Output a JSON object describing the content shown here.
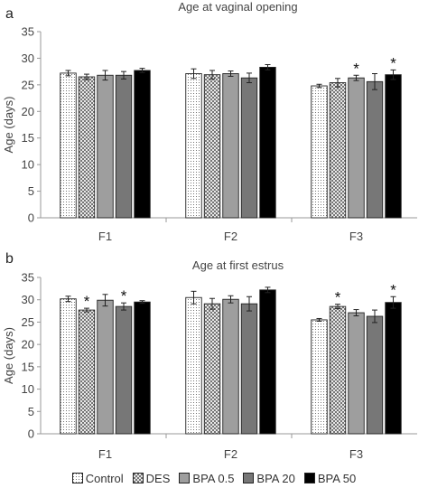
{
  "figure": {
    "series_styles": [
      {
        "name": "Control",
        "fill": "dots",
        "color": "#ffffff"
      },
      {
        "name": "DES",
        "fill": "cross",
        "color": "#ffffff"
      },
      {
        "name": "BPA 0.5",
        "fill": "solid",
        "color": "#9e9e9e"
      },
      {
        "name": "BPA 20",
        "fill": "solid",
        "color": "#777777"
      },
      {
        "name": "BPA 50",
        "fill": "solid",
        "color": "#000000"
      }
    ]
  },
  "chart_data": [
    {
      "type": "bar",
      "panel_label": "a",
      "title": "Age at vaginal opening",
      "ylabel": "Age (days)",
      "xlabel": "",
      "ylim": [
        0,
        35
      ],
      "yticks": [
        0,
        5,
        10,
        15,
        20,
        25,
        30,
        35
      ],
      "categories": [
        "F1",
        "F2",
        "F3"
      ],
      "legend": "bottom",
      "grid": false,
      "series": [
        {
          "name": "Control",
          "values": [
            27.2,
            27.1,
            24.8
          ],
          "errors": [
            0.5,
            0.9,
            0.3
          ],
          "significant": [
            false,
            false,
            false
          ]
        },
        {
          "name": "DES",
          "values": [
            26.5,
            26.9,
            25.4
          ],
          "errors": [
            0.5,
            0.8,
            0.8
          ],
          "significant": [
            false,
            false,
            false
          ]
        },
        {
          "name": "BPA 0.5",
          "values": [
            26.8,
            27.1,
            26.3
          ],
          "errors": [
            0.9,
            0.5,
            0.5
          ],
          "significant": [
            false,
            false,
            true
          ]
        },
        {
          "name": "BPA 20",
          "values": [
            26.8,
            26.3,
            25.6
          ],
          "errors": [
            0.7,
            0.9,
            1.5
          ],
          "significant": [
            false,
            false,
            false
          ]
        },
        {
          "name": "BPA 50",
          "values": [
            27.7,
            28.3,
            26.9
          ],
          "errors": [
            0.4,
            0.5,
            0.9
          ],
          "significant": [
            false,
            false,
            true
          ]
        }
      ],
      "significance_marker": "*"
    },
    {
      "type": "bar",
      "panel_label": "b",
      "title": "Age at first estrus",
      "ylabel": "Age (days)",
      "xlabel": "",
      "ylim": [
        0,
        35
      ],
      "yticks": [
        0,
        5,
        10,
        15,
        20,
        25,
        30,
        35
      ],
      "categories": [
        "F1",
        "F2",
        "F3"
      ],
      "legend": "bottom",
      "grid": false,
      "series": [
        {
          "name": "Control",
          "values": [
            30.2,
            30.5,
            25.5
          ],
          "errors": [
            0.6,
            1.4,
            0.3
          ],
          "significant": [
            false,
            false,
            false
          ]
        },
        {
          "name": "DES",
          "values": [
            27.7,
            29.1,
            28.5
          ],
          "errors": [
            0.4,
            1.2,
            0.5
          ],
          "significant": [
            true,
            false,
            true
          ]
        },
        {
          "name": "BPA 0.5",
          "values": [
            29.9,
            30.1,
            27.1
          ],
          "errors": [
            1.3,
            0.8,
            0.7
          ],
          "significant": [
            false,
            false,
            false
          ]
        },
        {
          "name": "BPA 20",
          "values": [
            28.5,
            29.1,
            26.3
          ],
          "errors": [
            0.8,
            1.6,
            1.4
          ],
          "significant": [
            true,
            false,
            false
          ]
        },
        {
          "name": "BPA 50",
          "values": [
            29.5,
            32.2,
            29.4
          ],
          "errors": [
            0.3,
            0.6,
            1.3
          ],
          "significant": [
            false,
            false,
            true
          ]
        }
      ],
      "significance_marker": "*"
    }
  ]
}
